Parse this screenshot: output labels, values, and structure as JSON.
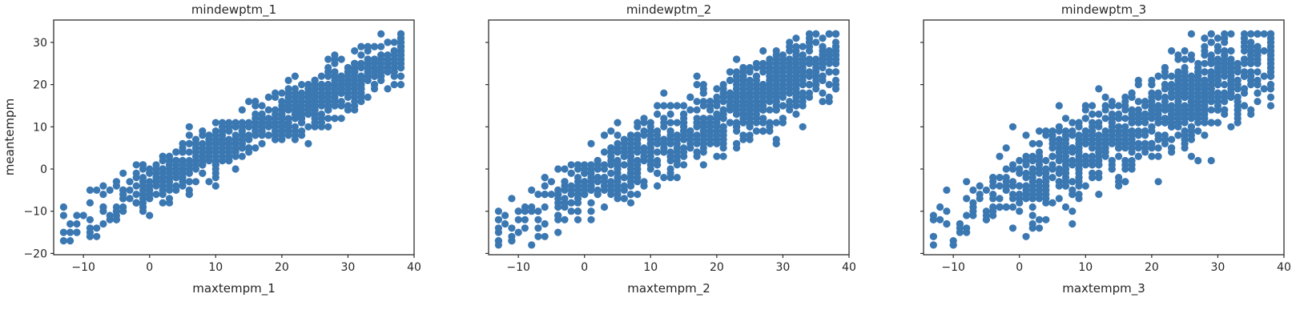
{
  "figure": {
    "background": "#ffffff",
    "axes_background": "#ffffff",
    "point_color": "#3b78b2",
    "spine_color": "#2e2e2e",
    "text_color": "#262626",
    "ylabel": "meantempm"
  },
  "chart_data": [
    {
      "type": "scatter",
      "title": "mindewptm_1",
      "xlabel": "maxtempm_1",
      "ylabel": "meantempm",
      "xlim": [
        -14.5,
        40
      ],
      "ylim": [
        -20.3,
        35.3
      ],
      "x_ticks": [
        -10,
        0,
        10,
        20,
        30,
        40
      ],
      "y_ticks": [
        -20,
        -10,
        0,
        10,
        20,
        30
      ],
      "show_y_tick_labels": true,
      "grid": false,
      "legend": null,
      "points_spec": {
        "n": 1000,
        "seed": 42,
        "x_mix": [
          {
            "w": 0.45,
            "mean": 8,
            "sd": 9
          },
          {
            "w": 0.55,
            "mean": 28,
            "sd": 6.5
          }
        ],
        "x_min": -13,
        "x_max": 38.4,
        "slope": 0.81,
        "intercept": -3.8,
        "noise_sd": 3.0,
        "y_min": -17.8,
        "y_max": 32.4,
        "round_to_int": true,
        "marker_radius": 4.6
      }
    },
    {
      "type": "scatter",
      "title": "mindewptm_2",
      "xlabel": "maxtempm_2",
      "ylabel": "meantempm",
      "xlim": [
        -14.5,
        40
      ],
      "ylim": [
        -20.3,
        35.3
      ],
      "x_ticks": [
        -10,
        0,
        10,
        20,
        30,
        40
      ],
      "y_ticks": [
        -20,
        -10,
        0,
        10,
        20,
        30
      ],
      "show_y_tick_labels": false,
      "grid": false,
      "legend": null,
      "points_spec": {
        "n": 1000,
        "seed": 7,
        "x_mix": [
          {
            "w": 0.45,
            "mean": 8,
            "sd": 9
          },
          {
            "w": 0.55,
            "mean": 28,
            "sd": 6.5
          }
        ],
        "x_min": -13,
        "x_max": 38.4,
        "slope": 0.81,
        "intercept": -3.8,
        "noise_sd": 4.3,
        "y_min": -17.8,
        "y_max": 32.4,
        "round_to_int": true,
        "marker_radius": 4.6
      }
    },
    {
      "type": "scatter",
      "title": "mindewptm_3",
      "xlabel": "maxtempm_3",
      "ylabel": "meantempm",
      "xlim": [
        -14.5,
        40
      ],
      "ylim": [
        -20.3,
        35.3
      ],
      "x_ticks": [
        -10,
        0,
        10,
        20,
        30,
        40
      ],
      "y_ticks": [
        -20,
        -10,
        0,
        10,
        20,
        30
      ],
      "show_y_tick_labels": false,
      "grid": false,
      "legend": null,
      "points_spec": {
        "n": 1000,
        "seed": 1234,
        "x_mix": [
          {
            "w": 0.45,
            "mean": 8,
            "sd": 9
          },
          {
            "w": 0.55,
            "mean": 28,
            "sd": 6.5
          }
        ],
        "x_min": -13,
        "x_max": 38.4,
        "slope": 0.81,
        "intercept": -3.8,
        "noise_sd": 5.4,
        "y_min": -17.8,
        "y_max": 32.4,
        "round_to_int": true,
        "marker_radius": 4.6
      }
    }
  ]
}
